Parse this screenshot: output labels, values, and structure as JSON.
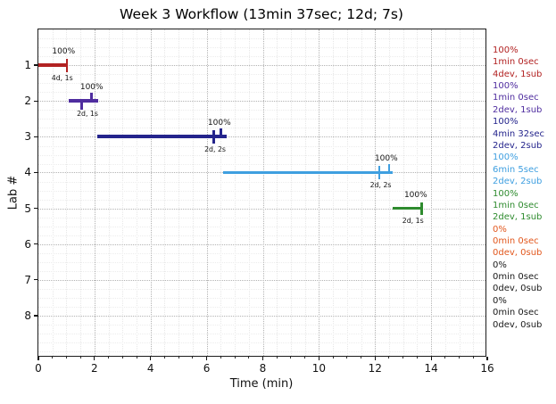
{
  "chart_data": {
    "type": "bar",
    "subtype": "horizontal-gantt-timeline",
    "title": "Week 3 Workflow (13min 37sec; 12d; 7s)",
    "xlabel": "Time (min)",
    "ylabel": "Lab #",
    "xlim": [
      0,
      16
    ],
    "xticks": [
      0,
      2,
      4,
      6,
      8,
      10,
      12,
      14,
      16
    ],
    "yticks": [
      "1",
      "2",
      "3",
      "4",
      "5",
      "6",
      "7",
      "8"
    ],
    "grid": "major and minor dotted gridlines, both axes",
    "legend_position": "right margin, per-lab colored summaries",
    "bars": [
      {
        "lab": 1,
        "start": 0.0,
        "end": 1.02,
        "color": "#b22222",
        "pct_label": "100%",
        "pct_x": 0.9,
        "sub_label": "4d, 1s",
        "sub_x": 0.85,
        "ticks": [
          {
            "x": 1.02,
            "dir": "cross"
          }
        ]
      },
      {
        "lab": 2,
        "start": 1.07,
        "end": 2.12,
        "color": "#4f2d9f",
        "pct_label": "100%",
        "pct_x": 1.9,
        "sub_label": "2d, 1s",
        "sub_x": 1.75,
        "ticks": [
          {
            "x": 1.55,
            "dir": "down"
          },
          {
            "x": 1.9,
            "dir": "up"
          }
        ]
      },
      {
        "lab": 3,
        "start": 2.1,
        "end": 6.7,
        "color": "#24248c",
        "pct_label": "100%",
        "pct_x": 6.45,
        "sub_label": "2d, 2s",
        "sub_x": 6.3,
        "ticks": [
          {
            "x": 6.25,
            "dir": "cross"
          },
          {
            "x": 6.5,
            "dir": "up"
          }
        ]
      },
      {
        "lab": 4,
        "start": 6.6,
        "end": 12.63,
        "color": "#3f9fe0",
        "pct_label": "100%",
        "pct_x": 12.4,
        "sub_label": "2d, 2s",
        "sub_x": 12.2,
        "ticks": [
          {
            "x": 12.15,
            "dir": "cross"
          },
          {
            "x": 12.5,
            "dir": "up"
          }
        ]
      },
      {
        "lab": 5,
        "start": 12.63,
        "end": 13.67,
        "color": "#2e8b2e",
        "pct_label": "100%",
        "pct_x": 13.45,
        "sub_label": "2d, 1s",
        "sub_x": 13.35,
        "ticks": [
          {
            "x": 13.67,
            "dir": "cross"
          }
        ]
      }
    ],
    "lab_summaries": [
      {
        "lab": 1,
        "color": "#b22222",
        "percent": "100%",
        "time": "1min 0sec",
        "devsub": "4dev, 1sub"
      },
      {
        "lab": 2,
        "color": "#4f2d9f",
        "percent": "100%",
        "time": "1min 0sec",
        "devsub": "2dev, 1sub"
      },
      {
        "lab": 3,
        "color": "#24248c",
        "percent": "100%",
        "time": "4min 32sec",
        "devsub": "2dev, 2sub"
      },
      {
        "lab": 4,
        "color": "#3f9fe0",
        "percent": "100%",
        "time": "6min 5sec",
        "devsub": "2dev, 2sub"
      },
      {
        "lab": 5,
        "color": "#2e8b2e",
        "percent": "100%",
        "time": "1min 0sec",
        "devsub": "2dev, 1sub"
      },
      {
        "lab": 6,
        "color": "#e2581e",
        "percent": "0%",
        "time": "0min 0sec",
        "devsub": "0dev, 0sub"
      },
      {
        "lab": 7,
        "color": "#1a1a1a",
        "percent": "0%",
        "time": "0min 0sec",
        "devsub": "0dev, 0sub"
      },
      {
        "lab": 8,
        "color": "#1a1a1a",
        "percent": "0%",
        "time": "0min 0sec",
        "devsub": "0dev, 0sub"
      }
    ]
  }
}
